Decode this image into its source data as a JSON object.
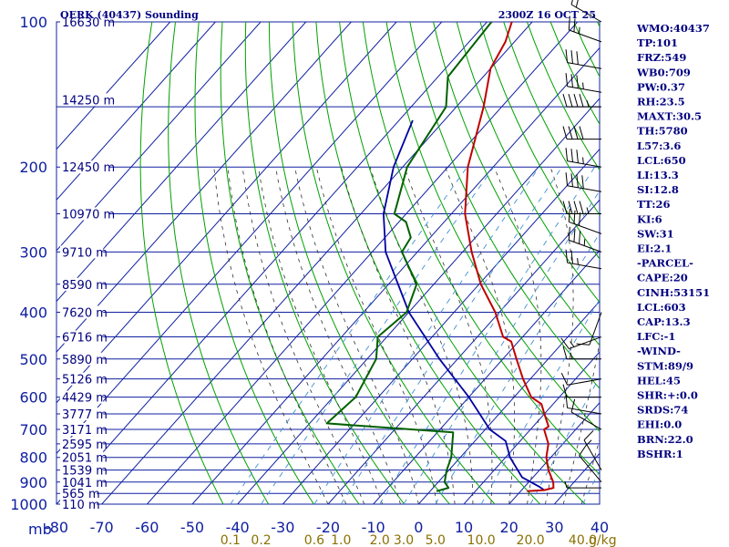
{
  "header": {
    "title": "OERK (40437) Sounding",
    "datetime": "2300Z 16 OCT 25"
  },
  "chart_data": {
    "type": "line",
    "title": "OERK (40437) Sounding",
    "pressure_unit": "mb",
    "mixing_ratio_unit": "g/kg",
    "pressure_ticks": [
      100,
      200,
      300,
      400,
      500,
      600,
      700,
      800,
      900,
      1000
    ],
    "pressure_tick_labels": [
      "100",
      "200",
      "300",
      "400",
      "500",
      "600",
      "700",
      "800",
      "900",
      "1000"
    ],
    "temperature_ticks": [
      -80,
      -70,
      -60,
      -50,
      -40,
      -30,
      -20,
      -10,
      0,
      10,
      20,
      30,
      40
    ],
    "temperature_tick_labels": [
      "-80",
      "-70",
      "-60",
      "-50",
      "-40",
      "-30",
      "-20",
      "-10",
      "0",
      "10",
      "20",
      "30",
      "40"
    ],
    "mixing_ratio_labels": [
      "0.1",
      "0.2",
      "0.6",
      "1.0",
      "2.0",
      "3.0",
      "5.0",
      "10.0",
      "20.0",
      "40.0"
    ],
    "height_labels": [
      {
        "p": 100,
        "text": "16630 m"
      },
      {
        "p": 145,
        "text": "14250 m"
      },
      {
        "p": 200,
        "text": "12450 m"
      },
      {
        "p": 250,
        "text": "10970 m"
      },
      {
        "p": 300,
        "text": "9710 m"
      },
      {
        "p": 350,
        "text": "8590 m"
      },
      {
        "p": 400,
        "text": "7620 m"
      },
      {
        "p": 450,
        "text": "6716 m"
      },
      {
        "p": 500,
        "text": "5890 m"
      },
      {
        "p": 550,
        "text": "5126 m"
      },
      {
        "p": 600,
        "text": "4429 m"
      },
      {
        "p": 650,
        "text": "3777 m"
      },
      {
        "p": 700,
        "text": "3171 m"
      },
      {
        "p": 750,
        "text": "2595 m"
      },
      {
        "p": 800,
        "text": "2051 m"
      },
      {
        "p": 850,
        "text": "1539 m"
      },
      {
        "p": 900,
        "text": "1041 m"
      },
      {
        "p": 950,
        "text": "565 m"
      },
      {
        "p": 1000,
        "text": "110 m"
      }
    ],
    "temperature_profile": {
      "name": "Temperature",
      "color": "#c00000",
      "points": [
        {
          "p": 940,
          "t": 21.4
        },
        {
          "p": 935,
          "t": 25.0
        },
        {
          "p": 925,
          "t": 26.6
        },
        {
          "p": 900,
          "t": 25.4
        },
        {
          "p": 850,
          "t": 22.0
        },
        {
          "p": 800,
          "t": 19.0
        },
        {
          "p": 750,
          "t": 16.8
        },
        {
          "p": 700,
          "t": 13.0
        },
        {
          "p": 690,
          "t": 13.4
        },
        {
          "p": 650,
          "t": 10.0
        },
        {
          "p": 620,
          "t": 7.4
        },
        {
          "p": 600,
          "t": 3.8
        },
        {
          "p": 550,
          "t": -1.6
        },
        {
          "p": 500,
          "t": -7.0
        },
        {
          "p": 460,
          "t": -11.6
        },
        {
          "p": 450,
          "t": -14.3
        },
        {
          "p": 400,
          "t": -20.9
        },
        {
          "p": 350,
          "t": -29.6
        },
        {
          "p": 300,
          "t": -38.0
        },
        {
          "p": 250,
          "t": -47.0
        },
        {
          "p": 200,
          "t": -55.6
        },
        {
          "p": 150,
          "t": -64.0
        },
        {
          "p": 125,
          "t": -70.0
        },
        {
          "p": 110,
          "t": -72.0
        },
        {
          "p": 100,
          "t": -74.5
        }
      ]
    },
    "dewpoint_profile": {
      "name": "Dewpoint",
      "color": "#006000",
      "points": [
        {
          "p": 940,
          "t": 1.4
        },
        {
          "p": 925,
          "t": 3.4
        },
        {
          "p": 900,
          "t": 1.4
        },
        {
          "p": 850,
          "t": -0.5
        },
        {
          "p": 800,
          "t": -2.0
        },
        {
          "p": 710,
          "t": -6.5
        },
        {
          "p": 680,
          "t": -36.2
        },
        {
          "p": 600,
          "t": -35.0
        },
        {
          "p": 500,
          "t": -38.0
        },
        {
          "p": 450,
          "t": -42.0
        },
        {
          "p": 400,
          "t": -40.5
        },
        {
          "p": 350,
          "t": -43.8
        },
        {
          "p": 300,
          "t": -53.4
        },
        {
          "p": 280,
          "t": -54.3
        },
        {
          "p": 260,
          "t": -58.4
        },
        {
          "p": 250,
          "t": -62.6
        },
        {
          "p": 200,
          "t": -69.0
        },
        {
          "p": 150,
          "t": -72.3
        },
        {
          "p": 130,
          "t": -77.8
        },
        {
          "p": 100,
          "t": -79.0
        }
      ]
    },
    "parcel_profile": {
      "name": "Parcel",
      "color": "#0000a0",
      "points": [
        {
          "p": 935,
          "t": 25.0
        },
        {
          "p": 920,
          "t": 23.2
        },
        {
          "p": 880,
          "t": 17.6
        },
        {
          "p": 800,
          "t": 11.0
        },
        {
          "p": 740,
          "t": 6.8
        },
        {
          "p": 700,
          "t": 1.0
        },
        {
          "p": 600,
          "t": -10.0
        },
        {
          "p": 500,
          "t": -24.0
        },
        {
          "p": 400,
          "t": -40.0
        },
        {
          "p": 300,
          "t": -57.0
        },
        {
          "p": 250,
          "t": -65.0
        },
        {
          "p": 200,
          "t": -72.0
        },
        {
          "p": 160,
          "t": -77.0
        }
      ]
    },
    "wind_barbs": [
      {
        "p": 100,
        "dir": 300,
        "kt": 20
      },
      {
        "p": 110,
        "dir": 290,
        "kt": 25
      },
      {
        "p": 125,
        "dir": 280,
        "kt": 30
      },
      {
        "p": 140,
        "dir": 280,
        "kt": 35
      },
      {
        "p": 150,
        "dir": 270,
        "kt": 45
      },
      {
        "p": 175,
        "dir": 270,
        "kt": 40
      },
      {
        "p": 200,
        "dir": 280,
        "kt": 35
      },
      {
        "p": 225,
        "dir": 280,
        "kt": 40
      },
      {
        "p": 250,
        "dir": 270,
        "kt": 45
      },
      {
        "p": 275,
        "dir": 290,
        "kt": 30
      },
      {
        "p": 300,
        "dir": 290,
        "kt": 35
      },
      {
        "p": 325,
        "dir": 280,
        "kt": 25
      },
      {
        "p": 400,
        "dir": 200,
        "kt": 10
      },
      {
        "p": 450,
        "dir": 250,
        "kt": 15
      },
      {
        "p": 500,
        "dir": 270,
        "kt": 15
      },
      {
        "p": 550,
        "dir": 260,
        "kt": 10
      },
      {
        "p": 600,
        "dir": 270,
        "kt": 10
      },
      {
        "p": 650,
        "dir": 280,
        "kt": 10
      },
      {
        "p": 700,
        "dir": 300,
        "kt": 10
      },
      {
        "p": 850,
        "dir": 330,
        "kt": 15
      },
      {
        "p": 900,
        "dir": 320,
        "kt": 10
      },
      {
        "p": 925,
        "dir": 270,
        "kt": 5
      }
    ],
    "x_range_temperature": [
      -80,
      40
    ],
    "y_range_pressure": [
      100,
      1000
    ],
    "y_scale": "log",
    "grid": true
  },
  "indices": [
    {
      "label": "WMO",
      "value": "40437"
    },
    {
      "label": "TP",
      "value": "101"
    },
    {
      "label": "FRZ",
      "value": "549"
    },
    {
      "label": "WB0",
      "value": "709"
    },
    {
      "label": "PW",
      "value": "0.37"
    },
    {
      "label": "RH",
      "value": "23.5"
    },
    {
      "label": "MAXT",
      "value": "30.5"
    },
    {
      "label": "TH",
      "value": "5780"
    },
    {
      "label": "L57",
      "value": "3.6"
    },
    {
      "label": "LCL",
      "value": "650"
    },
    {
      "label": "LI",
      "value": "13.3"
    },
    {
      "label": "SI",
      "value": "12.8"
    },
    {
      "label": "TT",
      "value": "26"
    },
    {
      "label": "KI",
      "value": "6"
    },
    {
      "label": "SW",
      "value": "31"
    },
    {
      "label": "EI",
      "value": "2.1"
    },
    {
      "label": "",
      "value": "-PARCEL-"
    },
    {
      "label": "CAPE",
      "value": "20"
    },
    {
      "label": "CINH",
      "value": "53151"
    },
    {
      "label": "LCL",
      "value": "603"
    },
    {
      "label": "CAP",
      "value": "13.3"
    },
    {
      "label": "LFC",
      "value": "-1"
    },
    {
      "label": "",
      "value": "-WIND-"
    },
    {
      "label": "STM",
      "value": "89/9"
    },
    {
      "label": "HEL",
      "value": "45"
    },
    {
      "label": "SHR",
      "value": "+:0.0"
    },
    {
      "label": "SRDS",
      "value": "74"
    },
    {
      "label": "EHI",
      "value": "0.0"
    },
    {
      "label": "BRN",
      "value": "22.0"
    },
    {
      "label": "BSHR",
      "value": "1"
    }
  ],
  "colors": {
    "isobar": "#1020a0",
    "isotherm": "#1020a0",
    "dry_adiabat": "#00a000",
    "moist_adiabat": "#303030",
    "mixing_ratio": "#4090d0",
    "temperature": "#c00000",
    "dewpoint": "#006000",
    "parcel": "#0000a0",
    "text": "#000080",
    "mixing_label": "#8a7000"
  }
}
